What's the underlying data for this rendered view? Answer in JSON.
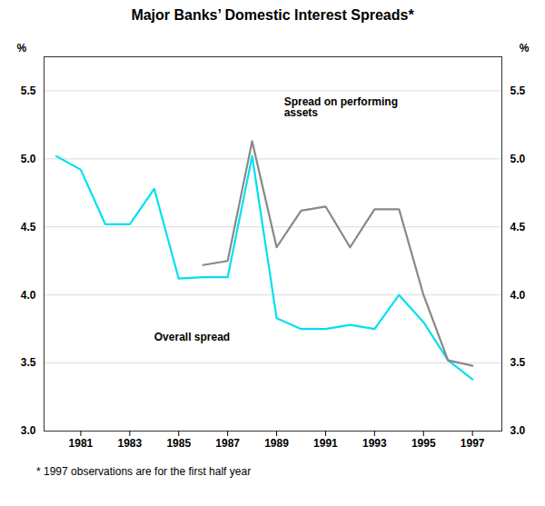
{
  "chart_data": {
    "type": "line",
    "title": "Major Banks’ Domestic Interest Spreads*",
    "footnote": "*  1997 observations are for the first half year",
    "ylabel": "%",
    "y2label": "%",
    "xlim": [
      1979.5,
      1998.2
    ],
    "xticks": [
      1981,
      1983,
      1985,
      1987,
      1989,
      1991,
      1993,
      1995,
      1997
    ],
    "ylim": [
      3.0,
      5.75
    ],
    "yticks": [
      {
        "value": 3.0,
        "label": "3.0"
      },
      3.5,
      {
        "value": 4.0,
        "label": "4.0"
      },
      4.5,
      {
        "value": 5.0,
        "label": "5.0"
      },
      5.5
    ],
    "y2lim": [
      3.0,
      5.75
    ],
    "y2ticks": [
      {
        "value": 3.0,
        "label": "3.0"
      },
      3.5,
      {
        "value": 4.0,
        "label": "4.0"
      },
      4.5,
      {
        "value": 5.0,
        "label": "5.0"
      },
      5.5
    ],
    "grid": true,
    "series": [
      {
        "name": "Overall spread",
        "color": "#00e0f0",
        "x": [
          1980,
          1981,
          1982,
          1983,
          1984,
          1985,
          1986,
          1987,
          1988,
          1989,
          1990,
          1991,
          1992,
          1993,
          1994,
          1995,
          1996,
          1997
        ],
        "values": [
          5.02,
          4.92,
          4.52,
          4.52,
          4.78,
          4.12,
          4.13,
          4.13,
          5.02,
          3.83,
          3.75,
          3.75,
          3.78,
          3.75,
          4.0,
          3.8,
          3.52,
          3.38
        ]
      },
      {
        "name": "Spread on performing assets",
        "color": "#888888",
        "x": [
          1986,
          1987,
          1988,
          1989,
          1990,
          1991,
          1992,
          1993,
          1994,
          1995,
          1996,
          1997
        ],
        "values": [
          4.22,
          4.25,
          5.13,
          4.35,
          4.62,
          4.65,
          4.35,
          4.63,
          4.63,
          4.0,
          3.52,
          3.48
        ]
      }
    ],
    "annotations": [
      {
        "text": "Spread on performing\nassets",
        "x": 1989.3,
        "y": 5.45
      },
      {
        "text": "Overall spread",
        "x": 1984.0,
        "y": 3.72
      }
    ]
  }
}
